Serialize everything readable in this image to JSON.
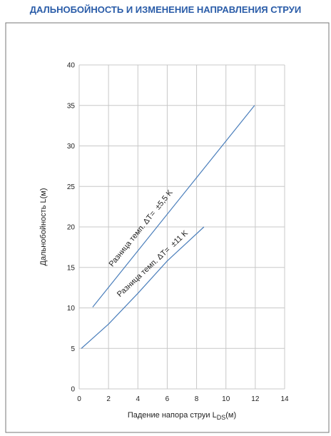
{
  "chart_data": {
    "type": "line",
    "title": "ДАЛЬНОБОЙНОСТЬ И ИЗМЕНЕНИЕ НАПРАВЛЕНИЯ СТРУИ",
    "ylabel": "Дальнобойность L(м)",
    "xlabel_parts": [
      "Падение напора струи L",
      "DS",
      "(м)"
    ],
    "series": [
      {
        "name": "Разница темп. ΔT=  ±5,5 K",
        "color": "#4a7ebb",
        "x": [
          0.92,
          11.95
        ],
        "values": [
          10.1,
          35
        ]
      },
      {
        "name": "Разница темп. ΔT=  ±11 K",
        "color": "#4a7ebb",
        "x": [
          0.15,
          2,
          4,
          6,
          8.5
        ],
        "values": [
          5,
          8,
          11.8,
          15.8,
          20
        ]
      }
    ],
    "xlim": [
      0,
      14
    ],
    "xticks": [
      0,
      2,
      4,
      6,
      8,
      10,
      12,
      14
    ],
    "ylim": [
      0,
      40
    ],
    "yticks": [
      0,
      5,
      10,
      15,
      20,
      25,
      30,
      35,
      40
    ],
    "grid": true
  }
}
